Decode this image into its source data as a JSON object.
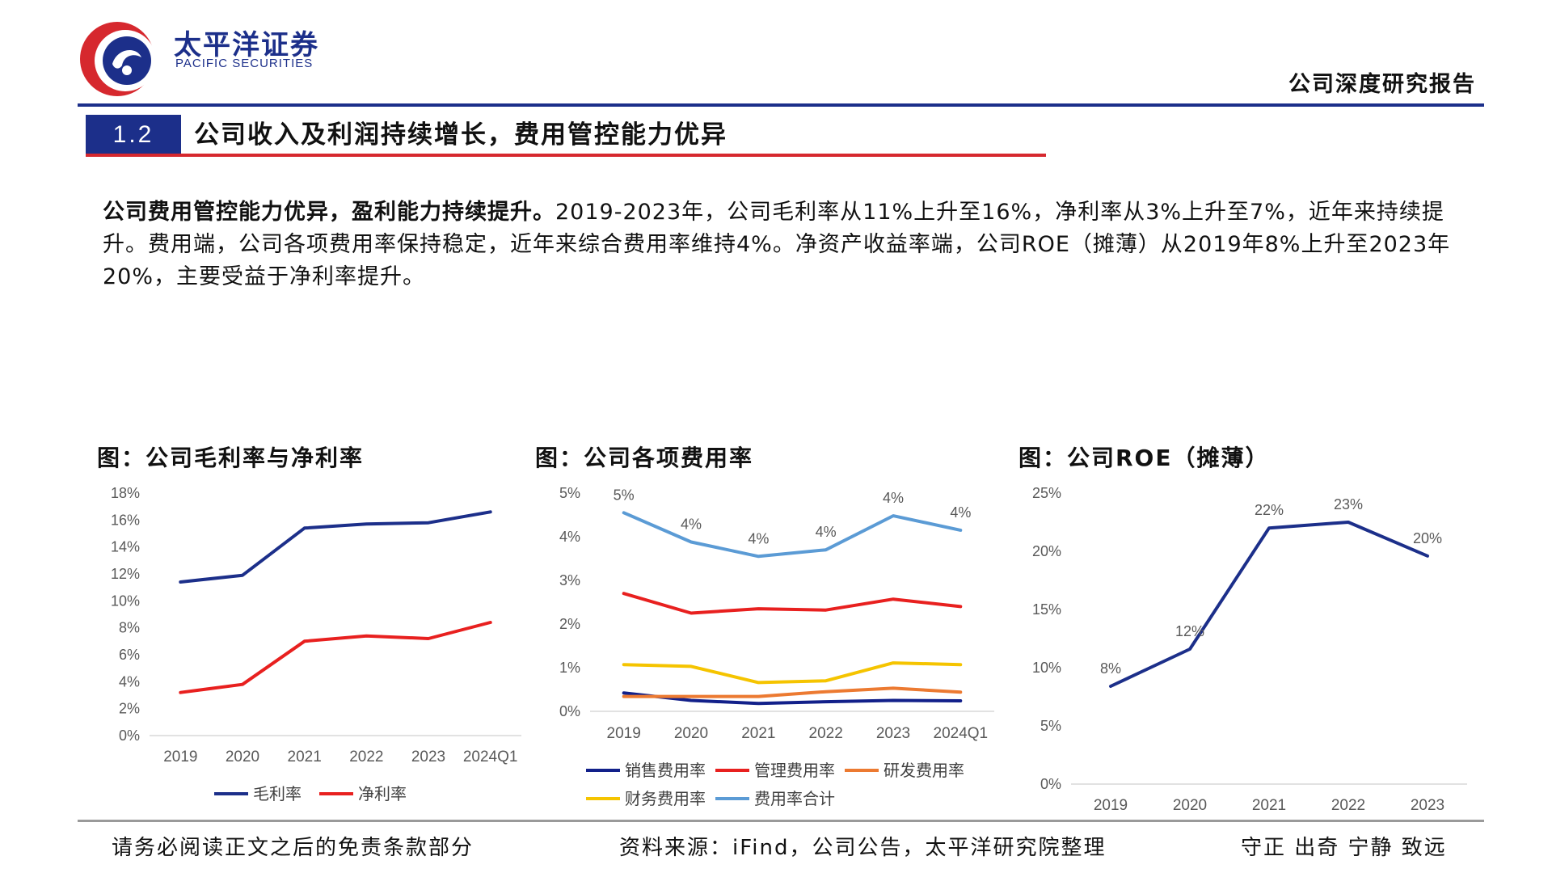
{
  "header": {
    "brand_cn": "太平洋证券",
    "brand_en": "PACIFIC SECURITIES",
    "report_type": "公司深度研究报告",
    "logo_colors": {
      "red": "#d6282e",
      "blue": "#1c2f8a"
    }
  },
  "section": {
    "number": "1.2",
    "title": "公司收入及利润持续增长，费用管控能力优异"
  },
  "summary": {
    "bold_lead": "公司费用管控能力优异，盈利能力持续提升。",
    "body": "2019-2023年，公司毛利率从11%上升至16%，净利率从3%上升至7%，近年来持续提升。费用端，公司各项费用率保持稳定，近年来综合费用率维持4%。净资产收益率端，公司ROE（摊薄）从2019年8%上升至2023年20%，主要受益于净利率提升。"
  },
  "chart_data": [
    {
      "type": "line",
      "title": "图：公司毛利率与净利率",
      "categories": [
        "2019",
        "2020",
        "2021",
        "2022",
        "2023",
        "2024Q1"
      ],
      "yticks": [
        "0%",
        "2%",
        "4%",
        "6%",
        "8%",
        "10%",
        "12%",
        "14%",
        "16%",
        "18%"
      ],
      "ylim": [
        0,
        18
      ],
      "series": [
        {
          "name": "毛利率",
          "color": "#1c2f8a",
          "values": [
            11.4,
            11.9,
            15.4,
            15.7,
            15.8,
            16.6
          ]
        },
        {
          "name": "净利率",
          "color": "#e8201f",
          "values": [
            3.2,
            3.8,
            7.0,
            7.4,
            7.2,
            8.4
          ]
        }
      ],
      "legend": "bottom"
    },
    {
      "type": "line",
      "title": "图：公司各项费用率",
      "categories": [
        "2019",
        "2020",
        "2021",
        "2022",
        "2023",
        "2024Q1"
      ],
      "yticks": [
        "0%",
        "1%",
        "2%",
        "3%",
        "4%",
        "5%"
      ],
      "ylim": [
        0,
        5
      ],
      "series": [
        {
          "name": "销售费用率",
          "color": "#12208a",
          "values": [
            0.42,
            0.25,
            0.18,
            0.22,
            0.25,
            0.24
          ]
        },
        {
          "name": "管理费用率",
          "color": "#e8201f",
          "values": [
            2.7,
            2.25,
            2.35,
            2.32,
            2.57,
            2.4
          ]
        },
        {
          "name": "研发费用率",
          "color": "#ec7a31",
          "values": [
            0.34,
            0.34,
            0.34,
            0.45,
            0.53,
            0.44
          ]
        },
        {
          "name": "财务费用率",
          "color": "#f5c400",
          "values": [
            1.07,
            1.03,
            0.66,
            0.7,
            1.11,
            1.07
          ]
        },
        {
          "name": "费用率合计",
          "color": "#5b9bd5",
          "values": [
            4.55,
            3.88,
            3.55,
            3.7,
            4.48,
            4.15
          ],
          "labels": [
            "5%",
            "4%",
            "4%",
            "4%",
            "4%",
            "4%"
          ]
        }
      ],
      "legend": "bottom"
    },
    {
      "type": "line",
      "title": "图：公司ROE（摊薄）",
      "categories": [
        "2019",
        "2020",
        "2021",
        "2022",
        "2023"
      ],
      "yticks": [
        "0%",
        "5%",
        "10%",
        "15%",
        "20%",
        "25%"
      ],
      "ylim": [
        0,
        25
      ],
      "series": [
        {
          "name": "ROE（摊薄）",
          "color": "#1c2f8a",
          "values": [
            8.4,
            11.6,
            22.0,
            22.5,
            19.6
          ],
          "labels": [
            "8%",
            "12%",
            "22%",
            "23%",
            "20%"
          ]
        }
      ],
      "legend": "none"
    }
  ],
  "footer": {
    "disclaimer": "请务必阅读正文之后的免责条款部分",
    "source": "资料来源：iFind，公司公告，太平洋研究院整理",
    "motto": "守正  出奇  宁静  致远"
  }
}
